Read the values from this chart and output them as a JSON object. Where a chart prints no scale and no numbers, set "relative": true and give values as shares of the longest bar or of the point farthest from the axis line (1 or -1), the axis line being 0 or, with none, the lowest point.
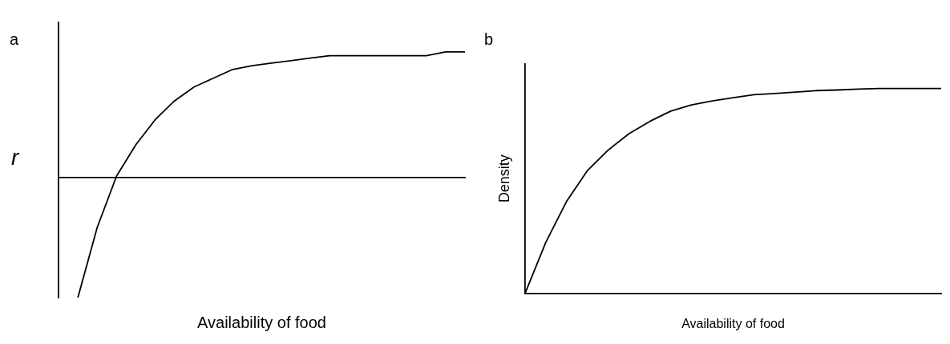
{
  "chart_data": [
    {
      "type": "line",
      "title": "a",
      "xlabel": "Availability of food",
      "ylabel": "r",
      "relative": true,
      "grid": false,
      "legend": false,
      "categories": [
        null,
        null,
        null,
        null,
        null,
        null,
        null,
        null,
        null,
        null,
        null,
        null,
        null,
        null,
        null,
        null,
        null,
        null,
        null,
        null,
        null,
        null
      ],
      "series": [
        {
          "color": "#000000",
          "values": [
            null,
            -0.96,
            -0.4,
            0.01,
            0.26,
            0.46,
            0.61,
            0.72,
            0.79,
            0.86,
            0.89,
            0.91,
            0.93,
            0.95,
            0.97,
            0.97,
            0.97,
            0.97,
            0.97,
            0.97,
            1.0,
            1.0
          ]
        }
      ]
    },
    {
      "type": "line",
      "title": "b",
      "xlabel": "Availability of food",
      "ylabel": "Density",
      "relative": true,
      "grid": false,
      "legend": false,
      "categories": [
        null,
        null,
        null,
        null,
        null,
        null,
        null,
        null,
        null,
        null,
        null,
        null,
        null,
        null,
        null,
        null,
        null,
        null,
        null,
        null,
        null
      ],
      "series": [
        {
          "color": "#000000",
          "values": [
            0,
            0.25,
            0.45,
            0.6,
            0.7,
            0.78,
            0.84,
            0.89,
            0.92,
            0.94,
            0.955,
            0.97,
            0.976,
            0.983,
            0.99,
            0.993,
            0.997,
            1,
            1,
            1,
            1
          ]
        }
      ]
    }
  ]
}
